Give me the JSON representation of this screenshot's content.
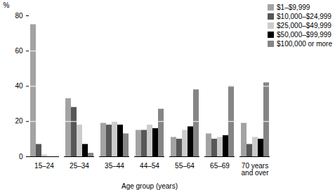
{
  "chart_data": {
    "type": "bar",
    "x_label": "Age group (years)",
    "y_label": "%",
    "categories": [
      "15–24",
      "25–34",
      "35–44",
      "44–54",
      "55–64",
      "65–69",
      "70 years and over"
    ],
    "series": [
      {
        "name": "$1–$9,999",
        "color": "#a3a3a3",
        "values": [
          75,
          33,
          19,
          15,
          11,
          13,
          19
        ]
      },
      {
        "name": "$10,000–$24,999",
        "color": "#575757",
        "values": [
          7,
          28,
          18,
          15,
          10,
          10,
          7
        ]
      },
      {
        "name": "$25,000–$49,999",
        "color": "#cccccc",
        "values": [
          1,
          18,
          20,
          18,
          15,
          11,
          11
        ]
      },
      {
        "name": "$50,000–$99,999",
        "color": "#000000",
        "values": [
          0,
          7,
          18,
          16,
          17,
          12,
          10
        ]
      },
      {
        "name": "$100,000 or more",
        "color": "#858585",
        "values": [
          0,
          2,
          13,
          27,
          38,
          40,
          42
        ]
      }
    ],
    "ylim": [
      0,
      80
    ],
    "yticks": [
      0,
      20,
      40,
      60,
      80
    ],
    "grid": true,
    "legend": "upper right"
  }
}
